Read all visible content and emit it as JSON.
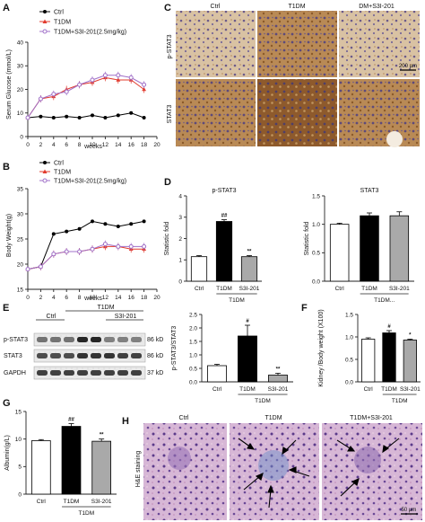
{
  "panels": {
    "A": {
      "letter": "A",
      "legend": [
        "Ctrl",
        "T1DM",
        "T1DM+S3I-201(2.5mg/kg)"
      ],
      "chart_data": {
        "type": "line",
        "ylabel": "Serum Glucose (mmol/L)",
        "xlabel": "weeks",
        "x": [
          0,
          2,
          4,
          6,
          8,
          10,
          12,
          14,
          16,
          18
        ],
        "xlim": [
          0,
          20
        ],
        "ylim": [
          0,
          40
        ],
        "xticks": [
          0,
          2,
          4,
          6,
          8,
          10,
          12,
          14,
          16,
          18,
          20
        ],
        "yticks": [
          0,
          10,
          20,
          30,
          40
        ],
        "series": [
          {
            "name": "Ctrl",
            "color": "#000000",
            "marker": "circle",
            "values": [
              8,
              8.5,
              8,
              8.5,
              8,
              9,
              8,
              9,
              10,
              8
            ]
          },
          {
            "name": "T1DM",
            "color": "#e23b2e",
            "marker": "triangle",
            "values": [
              8,
              16,
              17,
              20,
              22,
              23,
              25,
              24,
              24,
              20
            ]
          },
          {
            "name": "T1DM+S3I-201(2.5mg/kg)",
            "color": "#a070c8",
            "marker": "open-circle",
            "values": [
              8,
              16,
              18,
              19,
              22,
              24,
              26,
              26,
              25,
              22
            ]
          }
        ]
      }
    },
    "B": {
      "letter": "B",
      "legend": [
        "Ctrl",
        "T1DM",
        "T1DM+S3I-201(2.5mg/kg)"
      ],
      "chart_data": {
        "type": "line",
        "ylabel": "Body Weight(g)",
        "xlabel": "weeks",
        "x": [
          0,
          2,
          4,
          6,
          8,
          10,
          12,
          14,
          16,
          18
        ],
        "xlim": [
          0,
          20
        ],
        "ylim": [
          15,
          35
        ],
        "xticks": [
          0,
          2,
          4,
          6,
          8,
          10,
          12,
          14,
          16,
          18,
          20
        ],
        "yticks": [
          15,
          20,
          25,
          30,
          35
        ],
        "series": [
          {
            "name": "Ctrl",
            "color": "#000000",
            "marker": "circle",
            "values": [
              19,
              19.5,
              26,
              26.5,
              27,
              28.5,
              28,
              27.5,
              28,
              28.5
            ]
          },
          {
            "name": "T1DM",
            "color": "#e23b2e",
            "marker": "triangle",
            "values": [
              19,
              19.5,
              22,
              22.5,
              22.5,
              23,
              23.5,
              23.5,
              23,
              23
            ]
          },
          {
            "name": "T1DM+S3I-201(2.5mg/kg)",
            "color": "#a070c8",
            "marker": "open-circle",
            "values": [
              19,
              19.5,
              22,
              22.5,
              22.5,
              23,
              24,
              23.5,
              23.5,
              23.5
            ]
          }
        ]
      }
    },
    "C": {
      "letter": "C",
      "columns": [
        "Ctrl",
        "T1DM",
        "DM+S3I-201"
      ],
      "rows": [
        "p-STAT3",
        "STAT3"
      ],
      "scale": "200 μm"
    },
    "D": {
      "letter": "D",
      "charts": [
        {
          "type": "bar",
          "title": "p-STAT3",
          "ylabel": "Statistic fold",
          "ylim": [
            0,
            4
          ],
          "yticks": [
            0,
            1,
            2,
            3,
            4
          ],
          "categories": [
            "Ctrl",
            "T1DM",
            "S3I-201"
          ],
          "values": [
            1.15,
            2.8,
            1.15
          ],
          "errors": [
            0.05,
            0.08,
            0.05
          ],
          "colors": [
            "#ffffff",
            "#000000",
            "#a9a9a9"
          ],
          "annotations": [
            "",
            "##",
            "**"
          ],
          "group_label": "T1DM"
        },
        {
          "type": "bar",
          "title": "STAT3",
          "ylabel": "Statistic fold",
          "ylim": [
            0,
            1.5
          ],
          "yticks": [
            0,
            0.5,
            1.0,
            1.5
          ],
          "categories": [
            "Ctrl",
            "T1DM",
            "S3I-201"
          ],
          "values": [
            1.0,
            1.15,
            1.15
          ],
          "errors": [
            0.02,
            0.05,
            0.07
          ],
          "colors": [
            "#ffffff",
            "#000000",
            "#a9a9a9"
          ],
          "annotations": [
            "",
            "",
            ""
          ],
          "group_label": "T1DM..."
        }
      ]
    },
    "E": {
      "letter": "E",
      "blot": {
        "header_group": "T1DM",
        "header_ctrl": "Ctrl",
        "header_s3i": "S3I-201",
        "bands": [
          "p-STAT3",
          "STAT3",
          "GAPDH"
        ],
        "sizes": [
          "86 kD",
          "86 kD",
          "37 kD"
        ]
      },
      "chart_data": {
        "type": "bar",
        "ylabel": "p-STAT3/STAT3",
        "ylim": [
          0,
          2.5
        ],
        "yticks": [
          0,
          0.5,
          1.0,
          1.5,
          2.0,
          2.5
        ],
        "categories": [
          "Ctrl",
          "T1DM",
          "S3I-201"
        ],
        "values": [
          0.6,
          1.7,
          0.25
        ],
        "errors": [
          0.05,
          0.4,
          0.07
        ],
        "colors": [
          "#ffffff",
          "#000000",
          "#a9a9a9"
        ],
        "annotations": [
          "",
          "#",
          "**"
        ],
        "group_label": "T1DM"
      }
    },
    "F": {
      "letter": "F",
      "chart_data": {
        "type": "bar",
        "ylabel": "Kidney /Body weight (X100)",
        "ylim": [
          0,
          1.5
        ],
        "yticks": [
          0,
          0.5,
          1.0,
          1.5
        ],
        "categories": [
          "Ctrl",
          "T1DM",
          "S3I-201"
        ],
        "values": [
          0.95,
          1.09,
          0.93
        ],
        "errors": [
          0.03,
          0.05,
          0.02
        ],
        "colors": [
          "#ffffff",
          "#000000",
          "#a9a9a9"
        ],
        "annotations": [
          "",
          "#",
          "*"
        ],
        "group_label": "T1DM"
      }
    },
    "G": {
      "letter": "G",
      "chart_data": {
        "type": "bar",
        "ylabel": "Albumin(g/L)",
        "ylim": [
          0,
          15
        ],
        "yticks": [
          0,
          5,
          10,
          15
        ],
        "categories": [
          "Ctrl",
          "T1DM",
          "S3I-201"
        ],
        "values": [
          9.7,
          12.3,
          9.6
        ],
        "errors": [
          0.2,
          0.5,
          0.4
        ],
        "colors": [
          "#ffffff",
          "#000000",
          "#a9a9a9"
        ],
        "annotations": [
          "",
          "##",
          "**"
        ],
        "group_label": "T1DM"
      }
    },
    "H": {
      "letter": "H",
      "columns": [
        "Ctrl",
        "T1DM",
        "T1DM+S3I-201"
      ],
      "row_label": "H&E staining",
      "scale": "50 μm"
    }
  }
}
